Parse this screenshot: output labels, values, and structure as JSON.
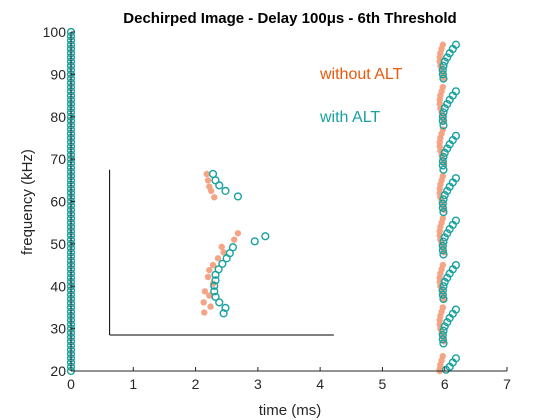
{
  "chart_data": {
    "type": "scatter",
    "title": "Dechirped Image - Delay 100μs - 6th Threshold",
    "xlabel": "time (ms)",
    "ylabel": "frequency (kHz)",
    "xlim": [
      0,
      7
    ],
    "ylim": [
      20,
      100
    ],
    "xticks": [
      0,
      1,
      2,
      3,
      4,
      5,
      6,
      7
    ],
    "yticks": [
      20,
      30,
      40,
      50,
      60,
      70,
      80,
      90,
      100
    ],
    "xtick_labels": [
      "0",
      "1",
      "2",
      "3",
      "4",
      "5",
      "6",
      "7"
    ],
    "ytick_labels": [
      "20",
      "30",
      "40",
      "50",
      "60",
      "70",
      "80",
      "90",
      "100"
    ],
    "grid": false,
    "annotations": [
      {
        "type": "reference-lines",
        "vertical_x": 0.62,
        "vertical_y": [
          28.5,
          67.5
        ],
        "horizontal_y": 28.5,
        "horizontal_x": [
          0.62,
          4.22
        ],
        "color": "#000000"
      }
    ],
    "series": [
      {
        "name": "without ALT",
        "color": "#F4A07F",
        "legend_color": "#E8590C",
        "marker": "filled-circle",
        "points": [
          [
            2.18,
            66.5
          ],
          [
            2.2,
            65.0
          ],
          [
            2.22,
            63.5
          ],
          [
            2.25,
            62.5
          ],
          [
            2.3,
            61.0
          ],
          [
            2.68,
            52.5
          ],
          [
            2.62,
            51.0
          ],
          [
            2.42,
            49.3
          ],
          [
            2.45,
            48.0
          ],
          [
            2.36,
            46.6
          ],
          [
            2.28,
            45.0
          ],
          [
            2.22,
            43.8
          ],
          [
            2.2,
            42.2
          ],
          [
            2.28,
            40.6
          ],
          [
            2.15,
            38.8
          ],
          [
            2.22,
            37.8
          ],
          [
            2.13,
            36.2
          ],
          [
            2.24,
            35.2
          ],
          [
            2.14,
            33.8
          ],
          [
            5.97,
            97.0
          ],
          [
            5.95,
            96.0
          ],
          [
            5.93,
            95.0
          ],
          [
            5.92,
            94.0
          ],
          [
            5.92,
            93.0
          ],
          [
            5.93,
            92.0
          ],
          [
            5.95,
            91.0
          ],
          [
            5.97,
            90.0
          ],
          [
            5.99,
            89.0
          ],
          [
            5.97,
            87.0
          ],
          [
            5.95,
            86.0
          ],
          [
            5.93,
            85.0
          ],
          [
            5.92,
            84.0
          ],
          [
            5.92,
            83.0
          ],
          [
            5.93,
            82.0
          ],
          [
            5.95,
            81.0
          ],
          [
            5.97,
            80.0
          ],
          [
            5.99,
            79.0
          ],
          [
            5.97,
            77.0
          ],
          [
            5.95,
            76.0
          ],
          [
            5.93,
            75.0
          ],
          [
            5.92,
            74.0
          ],
          [
            5.92,
            73.0
          ],
          [
            5.93,
            72.0
          ],
          [
            5.95,
            71.0
          ],
          [
            5.97,
            70.0
          ],
          [
            5.99,
            69.0
          ],
          [
            5.97,
            66.0
          ],
          [
            5.95,
            65.0
          ],
          [
            5.93,
            64.0
          ],
          [
            5.92,
            63.0
          ],
          [
            5.92,
            62.0
          ],
          [
            5.93,
            61.0
          ],
          [
            5.95,
            60.0
          ],
          [
            5.97,
            59.0
          ],
          [
            5.99,
            58.0
          ],
          [
            5.97,
            56.0
          ],
          [
            5.95,
            55.0
          ],
          [
            5.93,
            54.0
          ],
          [
            5.92,
            53.0
          ],
          [
            5.92,
            52.0
          ],
          [
            5.93,
            51.0
          ],
          [
            5.95,
            50.0
          ],
          [
            5.97,
            49.0
          ],
          [
            5.99,
            48.0
          ],
          [
            5.97,
            45.0
          ],
          [
            5.95,
            44.0
          ],
          [
            5.93,
            43.0
          ],
          [
            5.92,
            42.0
          ],
          [
            5.92,
            41.0
          ],
          [
            5.93,
            40.0
          ],
          [
            5.95,
            39.0
          ],
          [
            5.97,
            38.0
          ],
          [
            5.99,
            37.0
          ],
          [
            5.97,
            35.0
          ],
          [
            5.95,
            34.0
          ],
          [
            5.93,
            33.0
          ],
          [
            5.92,
            32.0
          ],
          [
            5.92,
            31.0
          ],
          [
            5.93,
            30.0
          ],
          [
            5.95,
            29.0
          ],
          [
            5.97,
            28.0
          ],
          [
            5.99,
            27.0
          ],
          [
            5.97,
            23.5
          ],
          [
            5.95,
            22.5
          ],
          [
            5.93,
            21.5
          ],
          [
            5.92,
            20.5
          ],
          [
            5.92,
            20.0
          ]
        ]
      },
      {
        "name": "with ALT",
        "color": "#17A2A0",
        "legend_color": "#17A2A0",
        "marker": "open-circle",
        "points": [
          [
            2.28,
            66.5
          ],
          [
            2.32,
            65.0
          ],
          [
            2.38,
            63.8
          ],
          [
            2.48,
            62.5
          ],
          [
            2.68,
            61.2
          ],
          [
            3.12,
            51.8
          ],
          [
            2.95,
            50.6
          ],
          [
            2.6,
            49.2
          ],
          [
            2.55,
            47.8
          ],
          [
            2.5,
            46.6
          ],
          [
            2.43,
            45.3
          ],
          [
            2.37,
            44.0
          ],
          [
            2.32,
            42.7
          ],
          [
            2.32,
            41.4
          ],
          [
            2.3,
            40.1
          ],
          [
            2.3,
            38.8
          ],
          [
            2.32,
            37.5
          ],
          [
            2.38,
            36.2
          ],
          [
            2.48,
            34.9
          ],
          [
            2.45,
            33.6
          ],
          [
            6.18,
            97.0
          ],
          [
            6.13,
            96.0
          ],
          [
            6.08,
            95.0
          ],
          [
            6.04,
            94.0
          ],
          [
            6.0,
            93.0
          ],
          [
            5.98,
            92.0
          ],
          [
            5.97,
            91.0
          ],
          [
            5.97,
            90.0
          ],
          [
            5.98,
            89.0
          ],
          [
            6.18,
            86.0
          ],
          [
            6.13,
            85.0
          ],
          [
            6.08,
            84.0
          ],
          [
            6.04,
            83.0
          ],
          [
            6.0,
            82.0
          ],
          [
            5.98,
            81.0
          ],
          [
            5.97,
            80.0
          ],
          [
            5.97,
            79.0
          ],
          [
            5.98,
            78.0
          ],
          [
            6.18,
            75.5
          ],
          [
            6.13,
            74.5
          ],
          [
            6.08,
            73.5
          ],
          [
            6.04,
            72.5
          ],
          [
            6.0,
            71.5
          ],
          [
            5.98,
            70.5
          ],
          [
            5.97,
            69.5
          ],
          [
            5.97,
            68.5
          ],
          [
            5.98,
            67.5
          ],
          [
            6.18,
            65.5
          ],
          [
            6.13,
            64.5
          ],
          [
            6.08,
            63.5
          ],
          [
            6.04,
            62.5
          ],
          [
            6.0,
            61.5
          ],
          [
            5.98,
            60.5
          ],
          [
            5.97,
            59.5
          ],
          [
            5.97,
            58.5
          ],
          [
            5.98,
            57.5
          ],
          [
            6.18,
            55.5
          ],
          [
            6.13,
            54.5
          ],
          [
            6.08,
            53.5
          ],
          [
            6.04,
            52.5
          ],
          [
            6.0,
            51.5
          ],
          [
            5.98,
            50.5
          ],
          [
            5.97,
            49.5
          ],
          [
            5.97,
            48.5
          ],
          [
            5.98,
            47.5
          ],
          [
            6.18,
            45.0
          ],
          [
            6.13,
            44.0
          ],
          [
            6.08,
            43.0
          ],
          [
            6.04,
            42.0
          ],
          [
            6.0,
            41.0
          ],
          [
            5.98,
            40.0
          ],
          [
            5.97,
            39.0
          ],
          [
            5.97,
            38.0
          ],
          [
            5.98,
            37.0
          ],
          [
            6.18,
            34.5
          ],
          [
            6.13,
            33.5
          ],
          [
            6.08,
            32.5
          ],
          [
            6.04,
            31.5
          ],
          [
            6.0,
            30.5
          ],
          [
            5.98,
            29.5
          ],
          [
            5.97,
            28.5
          ],
          [
            5.97,
            27.5
          ],
          [
            5.98,
            26.5
          ],
          [
            6.18,
            23.0
          ],
          [
            6.13,
            22.0
          ],
          [
            6.08,
            21.0
          ],
          [
            6.02,
            20.3
          ],
          [
            0.0,
            100.0
          ],
          [
            0.0,
            99.0
          ],
          [
            0.0,
            98.0
          ],
          [
            0.0,
            97.0
          ],
          [
            0.0,
            96.0
          ],
          [
            0.0,
            95.0
          ],
          [
            0.0,
            94.0
          ],
          [
            0.0,
            93.0
          ],
          [
            0.0,
            92.0
          ],
          [
            0.0,
            91.0
          ],
          [
            0.0,
            90.0
          ],
          [
            0.0,
            89.0
          ],
          [
            0.0,
            88.0
          ],
          [
            0.0,
            87.0
          ],
          [
            0.0,
            86.0
          ],
          [
            0.0,
            85.0
          ],
          [
            0.0,
            84.0
          ],
          [
            0.0,
            83.0
          ],
          [
            0.0,
            82.0
          ],
          [
            0.0,
            81.0
          ],
          [
            0.0,
            80.0
          ],
          [
            0.0,
            79.0
          ],
          [
            0.0,
            78.0
          ],
          [
            0.0,
            77.0
          ],
          [
            0.0,
            76.0
          ],
          [
            0.0,
            75.0
          ],
          [
            0.0,
            74.0
          ],
          [
            0.0,
            73.0
          ],
          [
            0.0,
            72.0
          ],
          [
            0.0,
            71.0
          ],
          [
            0.0,
            70.0
          ],
          [
            0.0,
            69.0
          ],
          [
            0.0,
            68.0
          ],
          [
            0.0,
            67.0
          ],
          [
            0.0,
            66.0
          ],
          [
            0.0,
            65.0
          ],
          [
            0.0,
            64.0
          ],
          [
            0.0,
            63.0
          ],
          [
            0.0,
            62.0
          ],
          [
            0.0,
            61.0
          ],
          [
            0.0,
            60.0
          ],
          [
            0.0,
            59.0
          ],
          [
            0.0,
            58.0
          ],
          [
            0.0,
            57.0
          ],
          [
            0.0,
            56.0
          ],
          [
            0.0,
            55.0
          ],
          [
            0.0,
            54.0
          ],
          [
            0.0,
            53.0
          ],
          [
            0.0,
            52.0
          ],
          [
            0.0,
            51.0
          ],
          [
            0.0,
            50.0
          ],
          [
            0.0,
            49.0
          ],
          [
            0.0,
            48.0
          ],
          [
            0.0,
            47.0
          ],
          [
            0.0,
            46.0
          ],
          [
            0.0,
            45.0
          ],
          [
            0.0,
            44.0
          ],
          [
            0.0,
            43.0
          ],
          [
            0.0,
            42.0
          ],
          [
            0.0,
            41.0
          ],
          [
            0.0,
            40.0
          ],
          [
            0.0,
            39.0
          ],
          [
            0.0,
            38.0
          ],
          [
            0.0,
            37.0
          ],
          [
            0.0,
            36.0
          ],
          [
            0.0,
            35.0
          ],
          [
            0.0,
            34.0
          ],
          [
            0.0,
            33.0
          ],
          [
            0.0,
            32.0
          ],
          [
            0.0,
            31.0
          ],
          [
            0.0,
            30.0
          ],
          [
            0.0,
            29.0
          ],
          [
            0.0,
            28.0
          ],
          [
            0.0,
            27.0
          ],
          [
            0.0,
            26.0
          ],
          [
            0.0,
            25.0
          ],
          [
            0.0,
            24.0
          ],
          [
            0.0,
            23.0
          ],
          [
            0.0,
            22.0
          ],
          [
            0.0,
            21.0
          ],
          [
            0.0,
            20.0
          ]
        ]
      }
    ]
  }
}
